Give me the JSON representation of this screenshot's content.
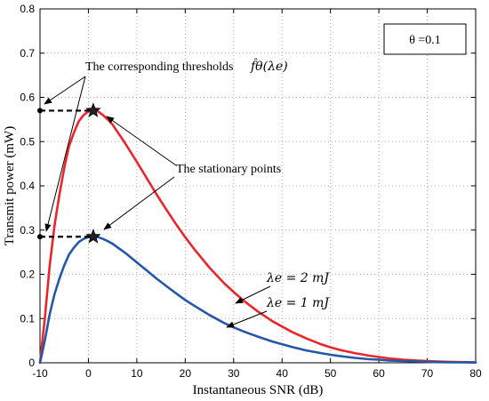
{
  "chart_data": {
    "type": "line",
    "xlabel": "Instantaneous SNR (dB)",
    "ylabel": "Transmit power (mW)",
    "xlim": [
      -10,
      80
    ],
    "ylim": [
      0,
      0.8
    ],
    "xticks": [
      "-10",
      "0",
      "10",
      "20",
      "30",
      "40",
      "50",
      "60",
      "70",
      "80"
    ],
    "yticks": [
      "0",
      "0.1",
      "0.2",
      "0.3",
      "0.4",
      "0.5",
      "0.6",
      "0.7",
      "0.8"
    ],
    "grid": true,
    "x": [
      -10,
      -9,
      -8,
      -7,
      -6,
      -5,
      -4,
      -3,
      -2,
      -1,
      0,
      1,
      2,
      3,
      4,
      5,
      6,
      7,
      8,
      10,
      12,
      14,
      16,
      18,
      20,
      22,
      25,
      28,
      30,
      32,
      35,
      38,
      40,
      42,
      45,
      48,
      50,
      52,
      55,
      58,
      60,
      62,
      65,
      68,
      70,
      72,
      75,
      78,
      80
    ],
    "series": [
      {
        "name": "λe = 2 mJ",
        "color": "#e8262b",
        "values": [
          0.0,
          0.1,
          0.22,
          0.31,
          0.38,
          0.44,
          0.49,
          0.52,
          0.546,
          0.56,
          0.568,
          0.57,
          0.568,
          0.56,
          0.55,
          0.538,
          0.522,
          0.506,
          0.489,
          0.454,
          0.418,
          0.382,
          0.348,
          0.315,
          0.284,
          0.255,
          0.215,
          0.18,
          0.16,
          0.141,
          0.116,
          0.094,
          0.082,
          0.07,
          0.055,
          0.042,
          0.035,
          0.029,
          0.022,
          0.016,
          0.013,
          0.01,
          0.007,
          0.005,
          0.004,
          0.003,
          0.002,
          0.0015,
          0.001
        ]
      },
      {
        "name": "λe = 1 mJ",
        "color": "#2457a7",
        "values": [
          0.0,
          0.05,
          0.11,
          0.155,
          0.19,
          0.22,
          0.245,
          0.26,
          0.273,
          0.28,
          0.284,
          0.285,
          0.284,
          0.28,
          0.275,
          0.269,
          0.261,
          0.253,
          0.245,
          0.227,
          0.209,
          0.191,
          0.174,
          0.158,
          0.142,
          0.128,
          0.108,
          0.09,
          0.08,
          0.071,
          0.059,
          0.048,
          0.042,
          0.036,
          0.028,
          0.022,
          0.018,
          0.015,
          0.011,
          0.008,
          0.007,
          0.005,
          0.004,
          0.003,
          0.002,
          0.0015,
          0.001,
          0.0008,
          0.0006
        ]
      }
    ],
    "stationary_points": [
      {
        "x": 1,
        "y": 0.57
      },
      {
        "x": 1,
        "y": 0.285
      }
    ],
    "thresholds": [
      0.57,
      0.285
    ],
    "legend_box": {
      "text": "θ =0.1",
      "placement": "top-right"
    },
    "annotations": {
      "thresholds": "The corresponding thresholds",
      "thresholds_math": "f̂θ(λe)",
      "stationary": "The stationary points",
      "label_red": "λe = 2 mJ",
      "label_blue": "λe = 1 mJ"
    }
  }
}
